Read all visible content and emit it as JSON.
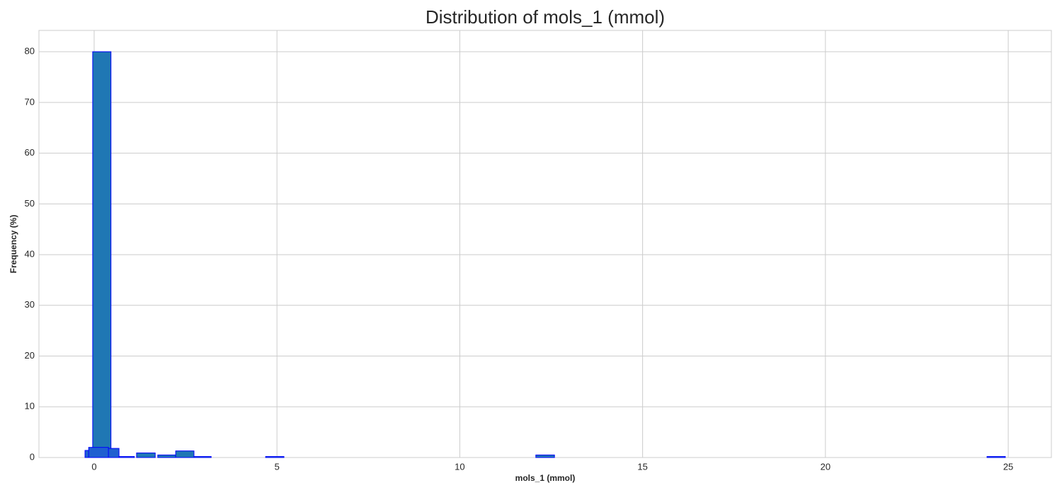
{
  "chart_data": {
    "type": "histogram",
    "title": "Distribution of mols_1 (mmol)",
    "x_label": "mols_1 (mmol)",
    "y_label": "Frequency (%)",
    "series": [
      {
        "color": "#1f77b4",
        "bins": [
          -0.04,
          0.46,
          1.16,
          1.67,
          1.74,
          2.23,
          2.73,
          3.2,
          4.69,
          5.19,
          12.08,
          12.59,
          24.42,
          24.92
        ],
        "values": [
          80,
          0,
          0.9,
          0,
          0.5,
          1.3,
          0.2,
          0,
          0.2,
          0,
          0.5,
          0,
          0.2
        ]
      },
      {
        "color": "#1f5fd0",
        "bins": [
          -0.25,
          0.25,
          0.68,
          1.1
        ],
        "values": [
          1.4,
          1.8,
          0.2
        ]
      },
      {
        "color": "#1f5fd0",
        "bins": [
          -0.15,
          0.39
        ],
        "values": [
          2
        ]
      }
    ],
    "edgecolor": "#0000ff",
    "xlim": [
      -1.51,
      26.18
    ],
    "ylim": [
      0,
      84.2
    ],
    "xticks": [
      0,
      5,
      10,
      15,
      20,
      25
    ],
    "yticks": [
      0,
      10,
      20,
      30,
      40,
      50,
      60,
      70,
      80
    ],
    "grid": true
  }
}
